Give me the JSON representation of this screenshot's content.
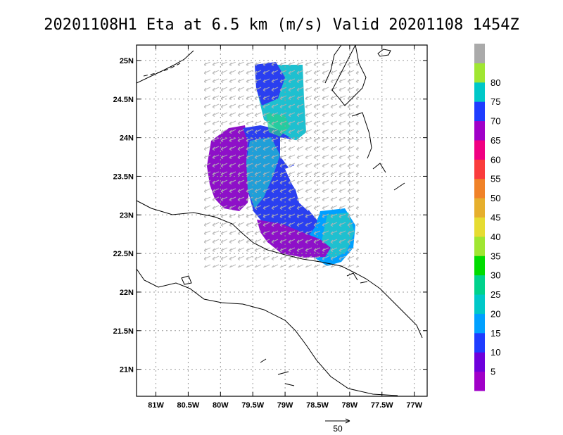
{
  "chart_data": {
    "type": "heatmap",
    "title": "20201108H1 Eta at 6.5 km (m/s) Valid 20201108  1454Z",
    "x_axis": {
      "range": [
        -81.3,
        -76.8
      ],
      "ticks": [
        -81,
        -80.5,
        -80,
        -79.5,
        -79,
        -78.5,
        -78,
        -77.5,
        -77
      ],
      "tick_labels": [
        "81W",
        "80.5W",
        "80W",
        "79.5W",
        "79W",
        "78.5W",
        "78W",
        "77.5W",
        "77W"
      ]
    },
    "y_axis": {
      "range": [
        20.65,
        25.2
      ],
      "ticks": [
        21,
        21.5,
        22,
        22.5,
        23,
        23.5,
        24,
        24.5,
        25
      ],
      "tick_labels": [
        "21N",
        "21.5N",
        "22N",
        "22.5N",
        "23N",
        "23.5N",
        "24N",
        "24.5N",
        "25N"
      ]
    },
    "grid": true,
    "colorbar": {
      "levels": [
        0,
        5,
        10,
        15,
        20,
        25,
        30,
        35,
        40,
        45,
        50,
        55,
        60,
        65,
        70,
        75,
        80,
        85
      ],
      "labels": [
        "5",
        "10",
        "15",
        "20",
        "25",
        "30",
        "35",
        "40",
        "45",
        "50",
        "55",
        "60",
        "65",
        "70",
        "75",
        "80"
      ],
      "colors": [
        "#a000c8",
        "#6e00dc",
        "#1e3cff",
        "#00a0ff",
        "#00c8c8",
        "#00d28c",
        "#00dc00",
        "#a0e632",
        "#e6dc32",
        "#e6af2d",
        "#f08228",
        "#fa3c3c",
        "#f00082",
        "#a000c8",
        "#1e3cff",
        "#00c8c8",
        "#a0e632",
        "#aaaaaa"
      ]
    },
    "wind_field": [
      {
        "lon": -80.05,
        "lat": 23.6,
        "speed": 68
      },
      {
        "lon": -79.7,
        "lat": 23.55,
        "speed": 67
      },
      {
        "lon": -79.3,
        "lat": 23.3,
        "speed": 72
      },
      {
        "lon": -79.15,
        "lat": 24.5,
        "speed": 70
      },
      {
        "lon": -79.05,
        "lat": 23.9,
        "speed": 75
      },
      {
        "lon": -78.7,
        "lat": 24.1,
        "speed": 73
      },
      {
        "lon": -79.35,
        "lat": 22.75,
        "speed": 66
      },
      {
        "lon": -78.85,
        "lat": 22.7,
        "speed": 67
      },
      {
        "lon": -78.2,
        "lat": 22.7,
        "speed": 72
      },
      {
        "lon": -78.05,
        "lat": 22.55,
        "speed": 75
      }
    ],
    "reference_vector": {
      "label": "50",
      "value": 50
    }
  }
}
